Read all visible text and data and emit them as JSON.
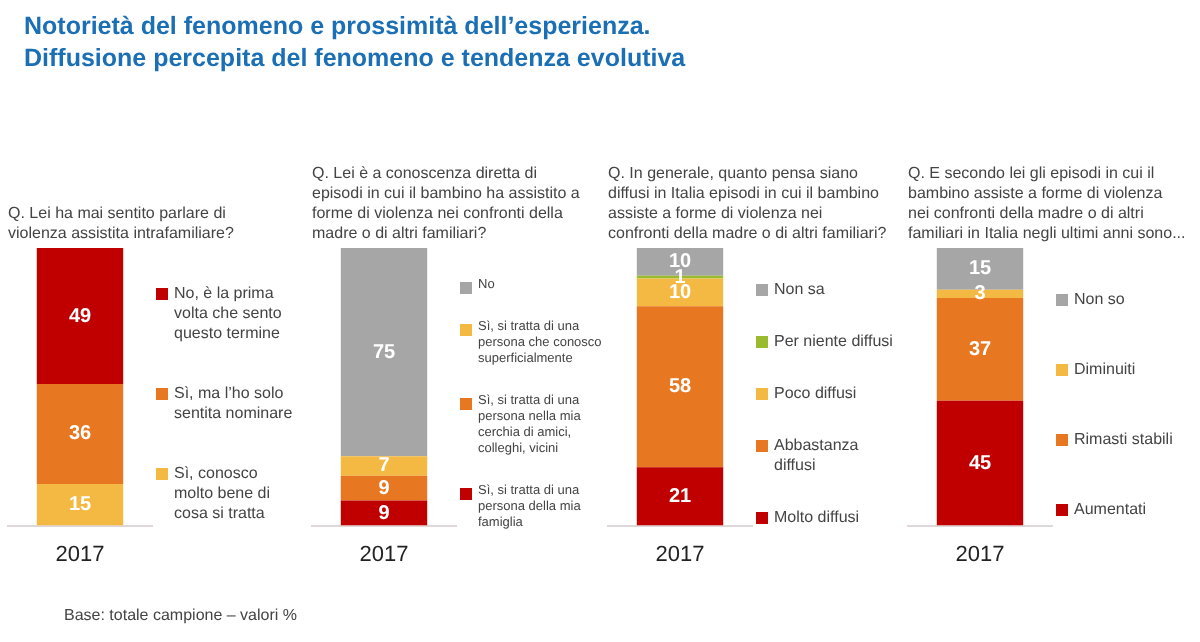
{
  "chart_data": [
    {
      "type": "bar",
      "title": "Notorietà del fenomeno e prossimità dell’esperienza.",
      "subtitle": "Diffusione percepita del fenomeno e tendenza evolutiva",
      "annotations": [
        "Q. Lei ha mai sentito parlare di violenza assistita intrafamiliare?",
        "Base: totale campione – valori %"
      ],
      "categories": [
        "2017"
      ],
      "stacked": true,
      "data_labels": true,
      "legend": "right",
      "grid": false,
      "series": [
        {
          "name": "Sì, conosco molto bene di cosa si tratta",
          "color": "#f4b942",
          "values": [
            15
          ]
        },
        {
          "name": "Sì, ma l’ho solo sentita nominare",
          "color": "#e87722",
          "values": [
            36
          ]
        },
        {
          "name": "No, è la prima volta che sento questo termine",
          "color": "#c00000",
          "values": [
            49
          ]
        }
      ]
    },
    {
      "type": "bar",
      "annotations": [
        "Q. Lei è a conoscenza diretta di episodi in cui il bambino ha assistito a forme di violenza nei confronti della madre o di altri familiari?"
      ],
      "categories": [
        "2017"
      ],
      "stacked": true,
      "data_labels": true,
      "legend": "right",
      "grid": false,
      "series": [
        {
          "name": "Sì, si tratta di una persona della mia famiglia",
          "color": "#c00000",
          "values": [
            9
          ]
        },
        {
          "name": "Sì, si tratta di una persona nella mia cerchia di amici, colleghi, vicini",
          "color": "#e87722",
          "values": [
            9
          ]
        },
        {
          "name": "Sì, si tratta di una persona che conosco superficialmente",
          "color": "#f4b942",
          "values": [
            7
          ]
        },
        {
          "name": "No",
          "color": "#a6a6a6",
          "values": [
            75
          ]
        }
      ]
    },
    {
      "type": "bar",
      "annotations": [
        "Q. In generale, quanto pensa siano diffusi in Italia episodi in cui il bambino assiste a forme di violenza nei confronti della madre o di altri familiari?"
      ],
      "categories": [
        "2017"
      ],
      "stacked": true,
      "data_labels": true,
      "legend": "right",
      "grid": false,
      "series": [
        {
          "name": "Molto diffusi",
          "color": "#c00000",
          "values": [
            21
          ]
        },
        {
          "name": "Abbastanza diffusi",
          "color": "#e87722",
          "values": [
            58
          ]
        },
        {
          "name": "Poco diffusi",
          "color": "#f4b942",
          "values": [
            10
          ]
        },
        {
          "name": "Per niente diffusi",
          "color": "#9bbb2f",
          "values": [
            1
          ]
        },
        {
          "name": "Non sa",
          "color": "#a6a6a6",
          "values": [
            10
          ]
        }
      ]
    },
    {
      "type": "bar",
      "annotations": [
        "Q. E secondo lei gli episodi in cui il bambino assiste a forme di violenza nei confronti della madre o di altri familiari in Italia negli ultimi anni sono..."
      ],
      "categories": [
        "2017"
      ],
      "stacked": true,
      "data_labels": true,
      "legend": "right",
      "grid": false,
      "series": [
        {
          "name": "Aumentati",
          "color": "#c00000",
          "values": [
            45
          ]
        },
        {
          "name": "Rimasti stabili",
          "color": "#e87722",
          "values": [
            37
          ]
        },
        {
          "name": "Diminuiti",
          "color": "#f4b942",
          "values": [
            3
          ]
        },
        {
          "name": "Non so",
          "color": "#a6a6a6",
          "values": [
            15
          ]
        }
      ]
    }
  ]
}
